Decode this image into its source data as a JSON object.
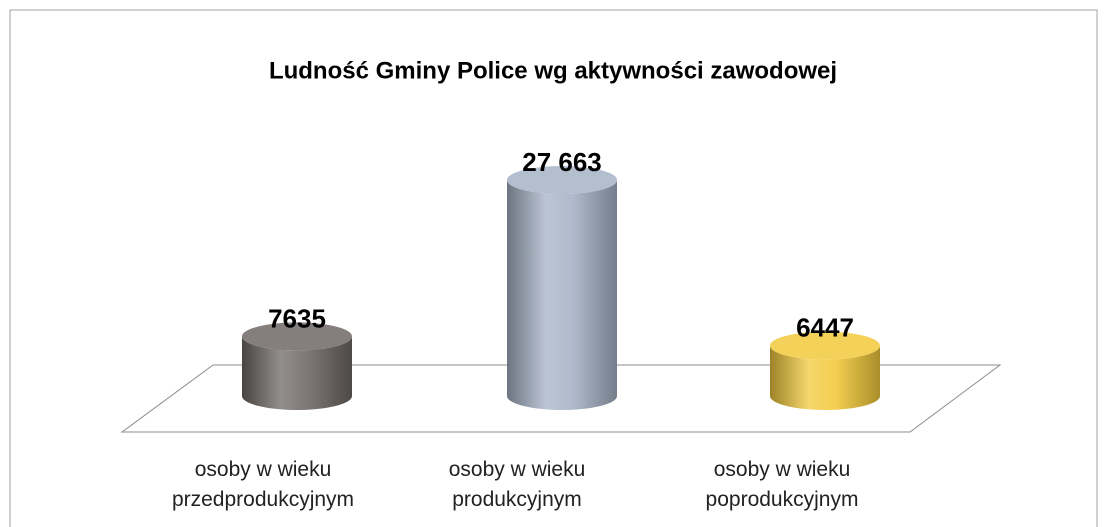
{
  "chart_data": {
    "type": "cylinder-bar",
    "title": "Ludność Gminy Police wg aktywności zawodowej",
    "categories": [
      "osoby w wieku przedprodukcyjnym",
      "osoby w wieku produkcyjnym",
      "osoby w wieku poprodukcyjnym"
    ],
    "values": [
      7635,
      27663,
      6447
    ],
    "value_labels": [
      "7635",
      "27 663",
      "6447"
    ],
    "colors": [
      "#6e6866",
      "#a6b2c6",
      "#f2c93c"
    ]
  }
}
